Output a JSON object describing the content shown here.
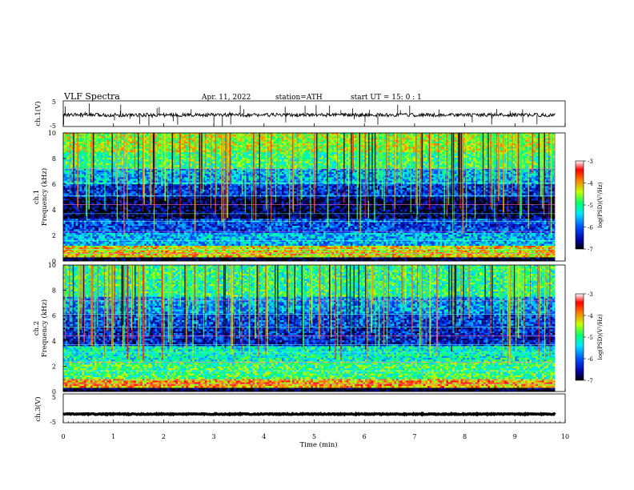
{
  "header": {
    "title": "VLF  Spectra",
    "date": "Apr. 11, 2022",
    "station": "station=ATH",
    "start": "start  UT  =   15: 0   : 1"
  },
  "chart_data": [
    {
      "type": "line",
      "id": "ch1-waveform",
      "ylabel": "ch.1(V)",
      "ylim": [
        -5,
        5
      ],
      "yticks": [
        "5",
        "-5"
      ],
      "xlim": [
        0,
        10
      ],
      "baseline": -0.5,
      "data_end": 9.8
    },
    {
      "type": "heatmap",
      "id": "ch1-spectrogram",
      "ylabel": "Frequency  (kHz)",
      "channel_label": "ch.1",
      "ylim": [
        0,
        10
      ],
      "yticks": [
        "0",
        "2",
        "4",
        "6",
        "8",
        "10"
      ],
      "xlim": [
        0,
        10
      ],
      "data_end": 9.8,
      "colorbar": {
        "label": "log(PSD)(V²/Hz)",
        "range": [
          -7,
          -3
        ],
        "ticks": [
          "-3",
          "-4",
          "-5",
          "-6",
          "-7"
        ]
      },
      "bands_khz": [
        {
          "from": 0,
          "to": 0.3,
          "level": -7
        },
        {
          "from": 0.3,
          "to": 1.2,
          "level": -4.2
        },
        {
          "from": 1.2,
          "to": 2.2,
          "level": -5.6
        },
        {
          "from": 2.2,
          "to": 3.3,
          "level": -6.1
        },
        {
          "from": 3.3,
          "to": 5.0,
          "level": -6.8
        },
        {
          "from": 5.0,
          "to": 6.0,
          "level": -6.2
        },
        {
          "from": 6.0,
          "to": 7.2,
          "level": -5.6
        },
        {
          "from": 7.2,
          "to": 8.5,
          "level": -4.9
        },
        {
          "from": 8.5,
          "to": 10,
          "level": -4.5
        }
      ]
    },
    {
      "type": "heatmap",
      "id": "ch2-spectrogram",
      "ylabel": "Frequency  (kHz)",
      "channel_label": "ch.2",
      "ylim": [
        0,
        10
      ],
      "yticks": [
        "0",
        "2",
        "4",
        "6",
        "8",
        "10"
      ],
      "xlim": [
        0,
        10
      ],
      "data_end": 9.8,
      "colorbar": {
        "label": "log(PSD)(V²/Hz)",
        "range": [
          -7,
          -3
        ],
        "ticks": [
          "-3",
          "-4",
          "-5",
          "-6",
          "-7"
        ]
      },
      "bands_khz": [
        {
          "from": 0,
          "to": 0.3,
          "level": -7
        },
        {
          "from": 0.3,
          "to": 1.0,
          "level": -4.0
        },
        {
          "from": 1.0,
          "to": 2.4,
          "level": -4.9
        },
        {
          "from": 2.4,
          "to": 3.6,
          "level": -5.2
        },
        {
          "from": 3.6,
          "to": 5.2,
          "level": -6.3
        },
        {
          "from": 5.2,
          "to": 6.2,
          "level": -6.1
        },
        {
          "from": 6.2,
          "to": 7.5,
          "level": -5.7
        },
        {
          "from": 7.5,
          "to": 10,
          "level": -5.0
        }
      ]
    },
    {
      "type": "line",
      "id": "ch3-waveform",
      "ylabel": "ch.3(V)",
      "ylim": [
        -5,
        5
      ],
      "yticks": [
        "5",
        "-5"
      ],
      "xlim": [
        0,
        10
      ],
      "baseline": -2,
      "data_end": 9.8
    }
  ],
  "xaxis": {
    "label": "Time  (min)",
    "ticks": [
      "0",
      "1",
      "2",
      "3",
      "4",
      "5",
      "6",
      "7",
      "8",
      "9",
      "10"
    ],
    "range": [
      0,
      10
    ]
  },
  "colors": {
    "scale": [
      "#000000",
      "#00009c",
      "#0050ff",
      "#00e6ff",
      "#00ff6e",
      "#c8ff00",
      "#ff6a00",
      "#ff0000",
      "#ffffff"
    ],
    "ink": "#000000"
  }
}
